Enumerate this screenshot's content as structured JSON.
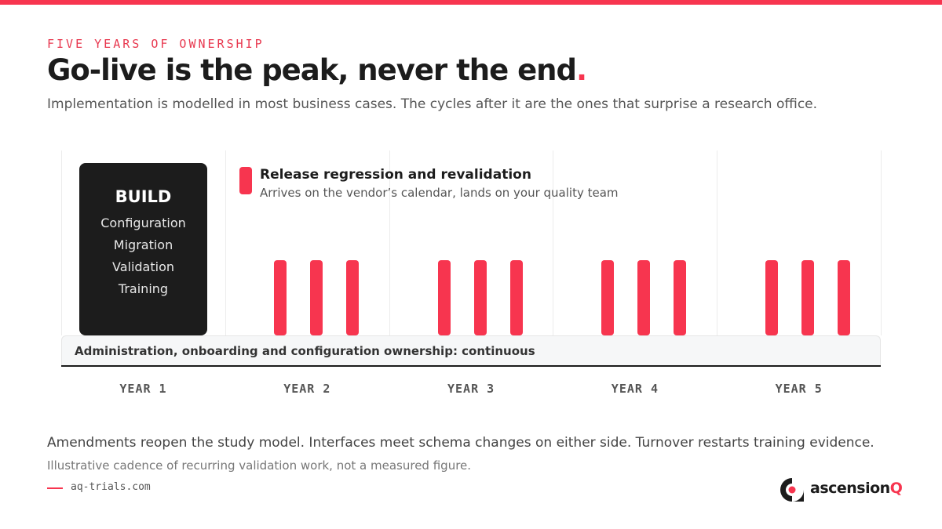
{
  "eyebrow": "FIVE YEARS OF OWNERSHIP",
  "title": {
    "text": "Go-live is the peak, never the end",
    "accent": "."
  },
  "subtitle": "Implementation is modelled in most business cases. The cycles after it are the ones that surprise a research office.",
  "build": {
    "label": "BUILD",
    "items": [
      "Configuration",
      "Migration",
      "Validation",
      "Training"
    ]
  },
  "legend": {
    "title": "Release regression and revalidation",
    "description": "Arrives on the vendor’s calendar, lands on your quality team"
  },
  "continuous": "Administration, onboarding and configuration ownership: continuous",
  "years": [
    {
      "label": "YEAR 1",
      "releases": 0
    },
    {
      "label": "YEAR 2",
      "releases": 3
    },
    {
      "label": "YEAR 3",
      "releases": 3
    },
    {
      "label": "YEAR 4",
      "releases": 3
    },
    {
      "label": "YEAR 5",
      "releases": 3
    }
  ],
  "footer": {
    "note": "Amendments reopen the study model. Interfaces meet schema changes on either side. Turnover restarts training evidence.",
    "caveat": "Illustrative cadence of recurring validation work, not a measured figure.",
    "source": "aq-trials.com"
  },
  "brand": {
    "name": "ascension",
    "accent": "Q"
  }
}
